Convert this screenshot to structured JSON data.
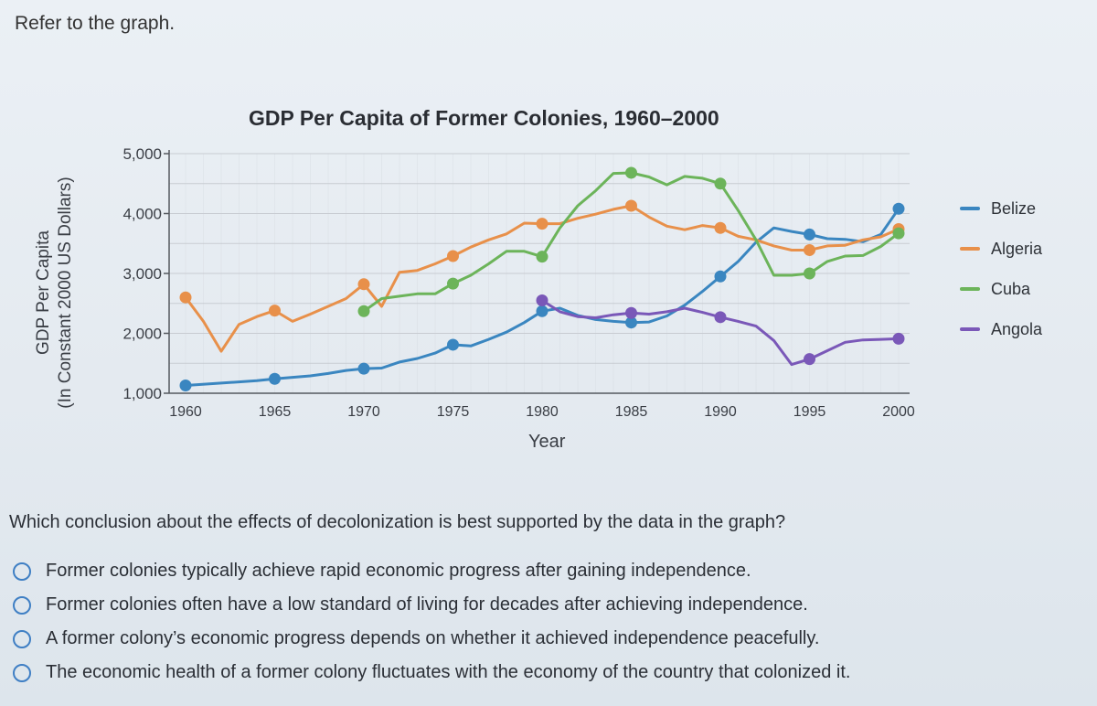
{
  "prompt": "Refer to the graph.",
  "question": "Which conclusion about the effects of decolonization is best supported by the data in the graph?",
  "options": [
    "Former colonies typically achieve rapid economic progress after gaining independence.",
    "Former colonies often have a low standard of living for decades after achieving independence.",
    "A former colony’s economic progress depends on whether it achieved independence peacefully.",
    "The economic health of a former colony fluctuates with the economy of the country that colonized it."
  ],
  "colors": {
    "Belize": "#3a86c0",
    "Algeria": "#e8904a",
    "Cuba": "#6cb45a",
    "Angola": "#7a58b8",
    "grid": "#c8ccd2",
    "axis": "#55595f"
  },
  "chart_data": {
    "type": "line",
    "title": "GDP Per Capita of Former Colonies, 1960–2000",
    "xlabel": "Year",
    "ylabel": "GDP Per Capita",
    "ylabel_sub": "(In Constant 2000 US Dollars)",
    "xlim": [
      1960,
      2000
    ],
    "ylim": [
      1000,
      5000
    ],
    "xticks": [
      1960,
      1965,
      1970,
      1975,
      1980,
      1985,
      1990,
      1995,
      2000
    ],
    "xtick_labels": [
      "1960",
      "1965",
      "1970",
      "1975",
      "1980",
      "1985",
      "1990",
      "1995",
      "2000"
    ],
    "yticks": [
      1000,
      2000,
      3000,
      4000,
      5000
    ],
    "ytick_labels": [
      "1,000",
      "2,000",
      "3,000",
      "4,000",
      "5,000"
    ],
    "grid": true,
    "legend": "right",
    "series": [
      {
        "name": "Belize",
        "x": [
          1960,
          1962,
          1964,
          1965,
          1967,
          1968,
          1969,
          1970,
          1971,
          1972,
          1973,
          1974,
          1975,
          1976,
          1977,
          1978,
          1979,
          1980,
          1981,
          1982,
          1983,
          1984,
          1985,
          1986,
          1987,
          1988,
          1989,
          1990,
          1991,
          1992,
          1993,
          1994,
          1995,
          1996,
          1997,
          1998,
          1999,
          2000
        ],
        "y": [
          1130,
          1170,
          1210,
          1240,
          1290,
          1330,
          1380,
          1410,
          1420,
          1520,
          1580,
          1670,
          1810,
          1790,
          1900,
          2020,
          2180,
          2370,
          2420,
          2300,
          2230,
          2200,
          2180,
          2190,
          2290,
          2470,
          2700,
          2950,
          3200,
          3520,
          3760,
          3700,
          3650,
          3580,
          3570,
          3530,
          3650,
          4080
        ],
        "markers_x": [
          1960,
          1965,
          1970,
          1975,
          1980,
          1985,
          1990,
          1995,
          2000
        ],
        "markers_y": [
          1130,
          1240,
          1410,
          1810,
          2370,
          2180,
          2950,
          3650,
          4080
        ]
      },
      {
        "name": "Algeria",
        "x": [
          1960,
          1961,
          1962,
          1963,
          1964,
          1965,
          1966,
          1967,
          1968,
          1969,
          1970,
          1971,
          1972,
          1973,
          1974,
          1975,
          1976,
          1977,
          1978,
          1979,
          1980,
          1981,
          1982,
          1983,
          1984,
          1985,
          1986,
          1987,
          1988,
          1989,
          1990,
          1991,
          1992,
          1993,
          1994,
          1995,
          1996,
          1997,
          1998,
          1999,
          2000
        ],
        "y": [
          2600,
          2200,
          1700,
          2150,
          2280,
          2380,
          2200,
          2320,
          2450,
          2580,
          2820,
          2450,
          3020,
          3050,
          3160,
          3290,
          3440,
          3560,
          3660,
          3840,
          3830,
          3830,
          3920,
          3990,
          4070,
          4130,
          3940,
          3790,
          3730,
          3800,
          3760,
          3620,
          3560,
          3460,
          3390,
          3390,
          3460,
          3470,
          3560,
          3610,
          3740
        ],
        "markers_x": [
          1960,
          1965,
          1970,
          1975,
          1980,
          1985,
          1990,
          1995,
          2000
        ],
        "markers_y": [
          2600,
          2380,
          2820,
          3290,
          3830,
          4130,
          3760,
          3390,
          3740
        ]
      },
      {
        "name": "Cuba",
        "x": [
          1970,
          1971,
          1972,
          1973,
          1974,
          1975,
          1976,
          1977,
          1978,
          1979,
          1980,
          1981,
          1982,
          1983,
          1984,
          1985,
          1986,
          1987,
          1988,
          1989,
          1990,
          1991,
          1992,
          1993,
          1994,
          1995,
          1996,
          1997,
          1998,
          1999,
          2000
        ],
        "y": [
          2370,
          2580,
          2620,
          2660,
          2660,
          2830,
          2970,
          3160,
          3370,
          3370,
          3280,
          3760,
          4130,
          4380,
          4670,
          4680,
          4610,
          4480,
          4620,
          4590,
          4500,
          4050,
          3560,
          2970,
          2970,
          3000,
          3200,
          3290,
          3300,
          3450,
          3670
        ],
        "markers_x": [
          1970,
          1975,
          1980,
          1985,
          1990,
          1995,
          2000
        ],
        "markers_y": [
          2370,
          2830,
          3280,
          4680,
          4500,
          3000,
          3670
        ]
      },
      {
        "name": "Angola",
        "x": [
          1980,
          1981,
          1982,
          1983,
          1984,
          1985,
          1986,
          1987,
          1988,
          1989,
          1990,
          1991,
          1992,
          1993,
          1994,
          1995,
          1996,
          1997,
          1998,
          1999,
          2000
        ],
        "y": [
          2550,
          2360,
          2280,
          2260,
          2310,
          2340,
          2320,
          2360,
          2420,
          2350,
          2270,
          2200,
          2120,
          1880,
          1480,
          1570,
          1710,
          1850,
          1890,
          1900,
          1910
        ],
        "markers_x": [
          1980,
          1985,
          1990,
          1995,
          2000
        ],
        "markers_y": [
          2550,
          2340,
          2270,
          1570,
          1910
        ]
      }
    ]
  }
}
